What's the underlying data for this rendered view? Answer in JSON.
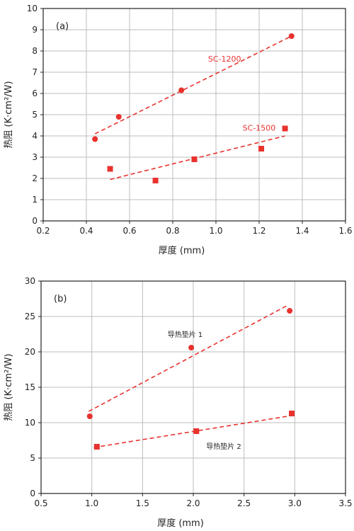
{
  "chart_data": [
    {
      "type": "scatter",
      "panel_label": "(a)",
      "xlabel": "厚度 (mm)",
      "ylabel": "热阻 (K·cm²/W)",
      "xlim": [
        0.2,
        1.6
      ],
      "ylim": [
        0,
        10
      ],
      "xticks": [
        0.2,
        0.4,
        0.6,
        0.8,
        1.0,
        1.2,
        1.4,
        1.6
      ],
      "xtick_labels": [
        "0.2",
        "0.4",
        "0.6",
        "0.8",
        "1.0",
        "1.2",
        "1.4",
        "1.6"
      ],
      "yticks": [
        0,
        1,
        2,
        3,
        4,
        5,
        6,
        7,
        8,
        9,
        10
      ],
      "ytick_labels": [
        "0",
        "1",
        "2",
        "3",
        "4",
        "5",
        "6",
        "7",
        "8",
        "9",
        "10"
      ],
      "grid": true,
      "series": [
        {
          "name": "SC-1200",
          "marker": "circle",
          "color": "#e8322e",
          "x": [
            0.44,
            0.55,
            0.84,
            1.35
          ],
          "y": [
            3.85,
            4.9,
            6.15,
            8.7
          ],
          "trend": {
            "x": [
              0.44,
              1.35
            ],
            "y": [
              4.1,
              8.7
            ]
          }
        },
        {
          "name": "SC-1500",
          "marker": "square",
          "color": "#e8322e",
          "x": [
            0.51,
            0.72,
            0.9,
            1.21,
            1.32
          ],
          "y": [
            2.45,
            1.9,
            2.9,
            3.4,
            4.35
          ],
          "trend": {
            "x": [
              0.51,
              1.32
            ],
            "y": [
              1.95,
              4.0
            ]
          }
        }
      ],
      "annotations": [
        {
          "text": "SC-1200",
          "x": 1.04,
          "y": 7.5
        },
        {
          "text": "SC-1500",
          "x": 1.2,
          "y": 4.25
        }
      ]
    },
    {
      "type": "scatter",
      "panel_label": "(b)",
      "xlabel": "厚度 (mm)",
      "ylabel": "热阻 (K·cm²/W)",
      "xlim": [
        0.5,
        3.5
      ],
      "ylim": [
        0,
        30
      ],
      "xticks": [
        0.5,
        1.0,
        1.5,
        2.0,
        2.5,
        3.0,
        3.5
      ],
      "xtick_labels": [
        "0.5",
        "1.0",
        "1.5",
        "2.0",
        "2.5",
        "3.0",
        "3.5"
      ],
      "yticks": [
        0,
        5,
        10,
        15,
        20,
        25,
        30
      ],
      "ytick_labels": [
        "0",
        "5",
        "10",
        "15",
        "20",
        "25",
        "30"
      ],
      "grid": true,
      "series": [
        {
          "name": "导热垫片 1",
          "marker": "circle",
          "color": "#e8322e",
          "x": [
            0.98,
            1.98,
            2.95
          ],
          "y": [
            10.9,
            20.6,
            25.8
          ],
          "trend": {
            "x": [
              0.97,
              2.92
            ],
            "y": [
              11.6,
              26.5
            ]
          }
        },
        {
          "name": "导热垫片 2",
          "marker": "square",
          "color": "#e8322e",
          "x": [
            1.05,
            2.03,
            2.97
          ],
          "y": [
            6.6,
            8.8,
            11.3
          ],
          "trend": {
            "x": [
              1.02,
              2.97
            ],
            "y": [
              6.5,
              11.0
            ]
          }
        }
      ],
      "annotations": [
        {
          "text": "导热垫片 1",
          "x": 1.92,
          "y": 22.1
        },
        {
          "text": "导热垫片 2",
          "x": 2.3,
          "y": 6.3
        }
      ]
    }
  ],
  "colors": {
    "data": "#e8322e",
    "grid": "#bdbdbd",
    "axis": "#222222",
    "text": "#222222"
  }
}
